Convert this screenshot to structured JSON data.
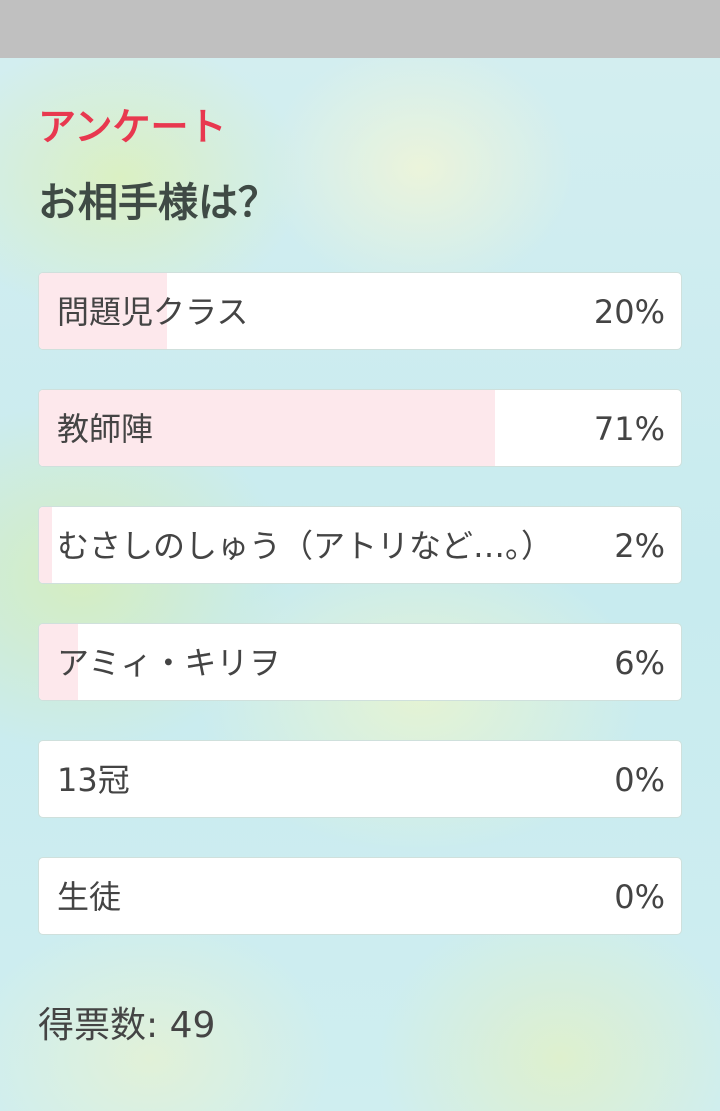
{
  "survey": {
    "kicker": "アンケート",
    "question": "お相手様は？",
    "fill_color": "#fde8ec",
    "accent_color": "#e8384f",
    "options": [
      {
        "label": "問題児クラス",
        "percent_label": "20%",
        "percent": 20
      },
      {
        "label": "教師陣",
        "percent_label": "71%",
        "percent": 71
      },
      {
        "label": "むさしのしゅう（アトリなど…。）",
        "percent_label": "2%",
        "percent": 2
      },
      {
        "label": "アミィ・キリヲ",
        "percent_label": "6%",
        "percent": 6
      },
      {
        "label": "13冠",
        "percent_label": "0%",
        "percent": 0
      },
      {
        "label": "生徒",
        "percent_label": "0%",
        "percent": 0
      }
    ],
    "vote_count": "得票数: 49"
  }
}
